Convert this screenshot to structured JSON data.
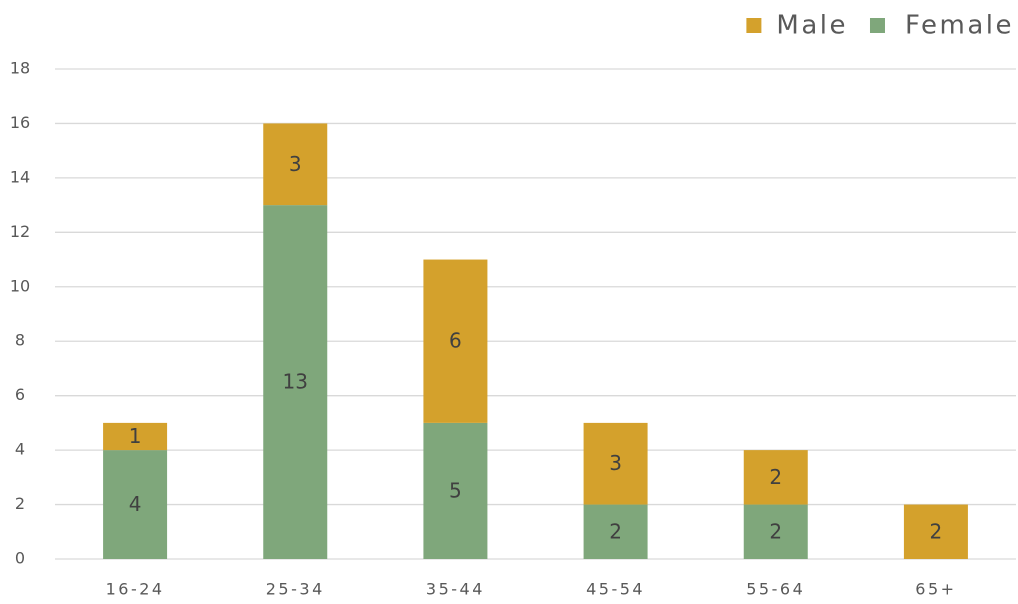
{
  "chart_data": {
    "type": "stacked_bar",
    "categories": [
      "16-24",
      "25-34",
      "35-44",
      "45-54",
      "55-64",
      "65+"
    ],
    "series": [
      {
        "name": "Female",
        "color": "#7fa77b",
        "values": [
          4,
          13,
          5,
          2,
          2,
          null
        ]
      },
      {
        "name": "Male",
        "color": "#d4a12c",
        "values": [
          1,
          3,
          6,
          3,
          2,
          2
        ]
      }
    ],
    "ylim": [
      0,
      18
    ],
    "yticks": [
      0,
      2,
      4,
      6,
      8,
      10,
      12,
      14,
      16,
      18
    ],
    "grid": true,
    "legend": "top-right"
  }
}
